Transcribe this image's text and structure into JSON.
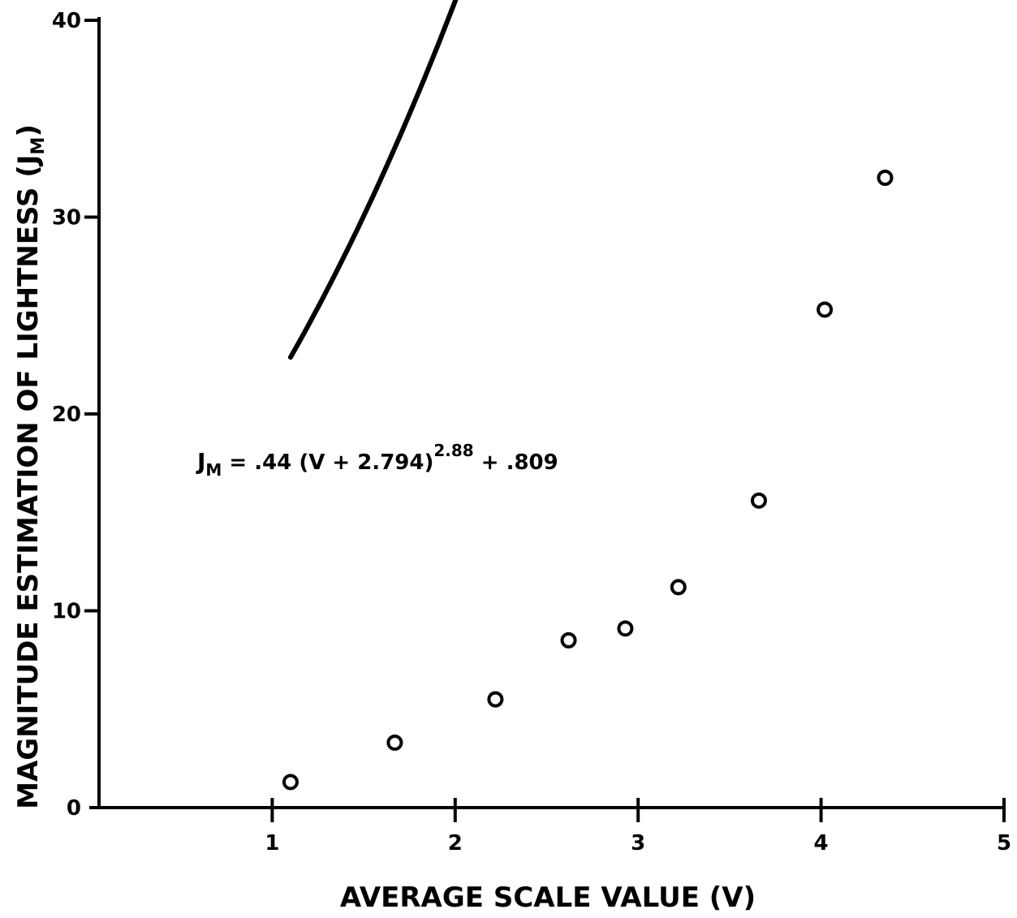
{
  "chart_data": {
    "type": "scatter",
    "title": "",
    "xlabel": "AVERAGE SCALE VALUE (V)",
    "ylabel_main": "MAGNITUDE ESTIMATION OF LIGHTNESS (J",
    "ylabel_sub": "M",
    "ylabel_close": ")",
    "xlim": [
      0,
      5
    ],
    "ylim": [
      0,
      40
    ],
    "x_ticks": [
      1,
      2,
      3,
      4,
      5
    ],
    "y_ticks": [
      0,
      10,
      20,
      30,
      40
    ],
    "grid": false,
    "series": [
      {
        "marker": "open-circle",
        "points": [
          {
            "x": 1.1,
            "y": 1.3
          },
          {
            "x": 1.67,
            "y": 3.3
          },
          {
            "x": 2.22,
            "y": 5.5
          },
          {
            "x": 2.62,
            "y": 8.5
          },
          {
            "x": 2.93,
            "y": 9.1
          },
          {
            "x": 3.22,
            "y": 11.2
          },
          {
            "x": 3.66,
            "y": 15.6
          },
          {
            "x": 4.02,
            "y": 25.3
          },
          {
            "x": 4.35,
            "y": 32.0
          }
        ]
      }
    ],
    "fit": {
      "a": 0.44,
      "b": 2.794,
      "exponent": 2.88,
      "c": 0.809,
      "x_range": [
        1.1,
        4.35
      ]
    },
    "equation": {
      "lhs": "J",
      "lhs_sub": "M",
      "body": " = .44 (V + 2.794)",
      "exponent": "2.88",
      "tail": " + .809"
    }
  }
}
